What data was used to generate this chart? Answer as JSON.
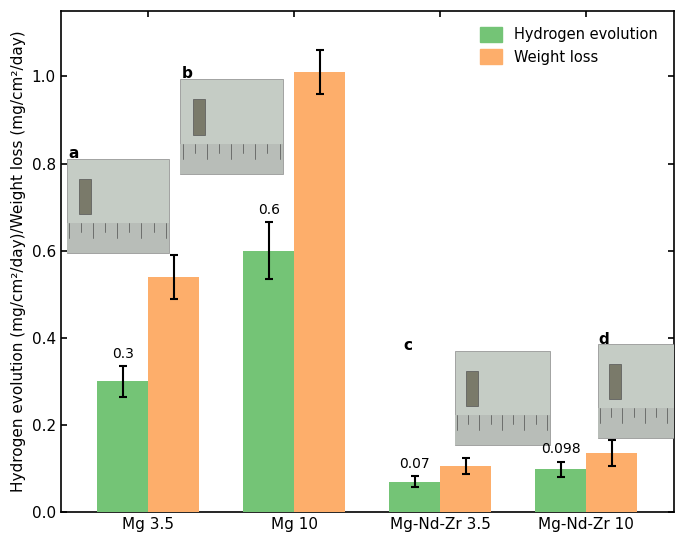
{
  "categories": [
    "Mg 3.5",
    "Mg 10",
    "Mg-Nd-Zr 3.5",
    "Mg-Nd-Zr 10"
  ],
  "hydrogen_evolution": [
    0.3,
    0.6,
    0.07,
    0.098
  ],
  "weight_loss": [
    0.54,
    1.01,
    0.105,
    0.135
  ],
  "hydrogen_errors": [
    0.035,
    0.065,
    0.012,
    0.018
  ],
  "weight_errors": [
    0.05,
    0.05,
    0.018,
    0.03
  ],
  "bar_color_hydrogen": "#74c476",
  "bar_color_weight": "#fdae6b",
  "ylabel": "Hydrogen evolution (mg/cm²/day)/Weight loss (mg/cm²/day)",
  "ylim": [
    0.0,
    1.15
  ],
  "yticks": [
    0.0,
    0.2,
    0.4,
    0.6,
    0.8,
    1.0
  ],
  "bar_width": 0.35,
  "legend_labels": [
    "Hydrogen evolution",
    "Weight loss"
  ],
  "bar_labels": [
    "0.3",
    "0.6",
    "0.07",
    "0.098"
  ],
  "photo_labels": [
    "a",
    "b",
    "c",
    "d"
  ],
  "background_color": "#ffffff",
  "axis_fontsize": 11,
  "tick_fontsize": 11,
  "photo_bg_color": "#c8cfc8",
  "ruler_color": "#c0c0c0",
  "sample_color": "#8a8a7a"
}
